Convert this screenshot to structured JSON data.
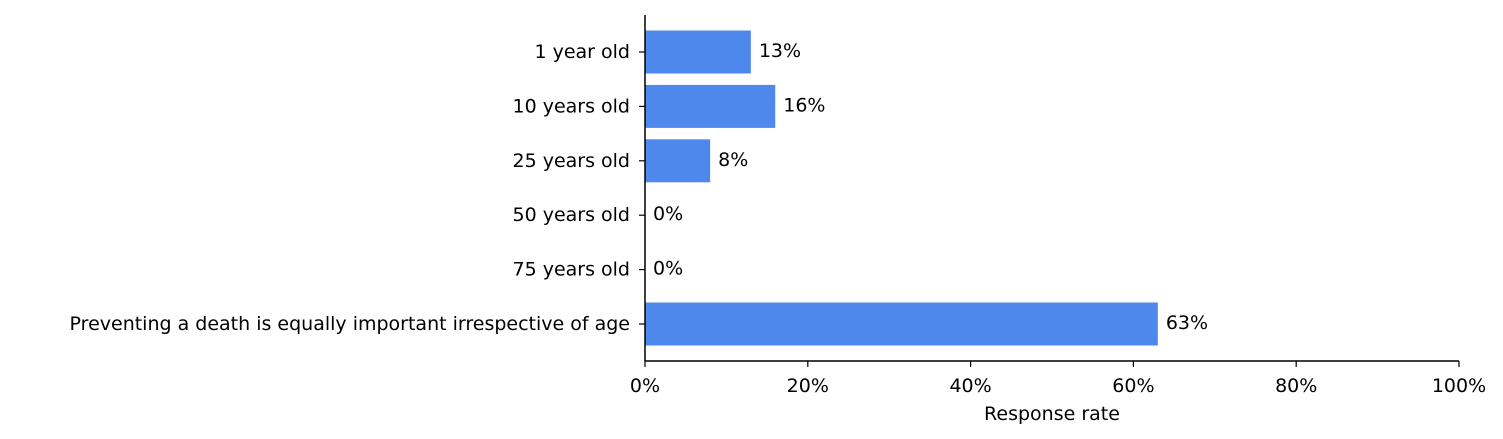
{
  "chart_data": {
    "type": "bar",
    "orientation": "horizontal",
    "categories": [
      "1 year old",
      "10 years old",
      "25 years old",
      "50 years old",
      "75 years old",
      "Preventing a death is equally important irrespective of age"
    ],
    "values": [
      13,
      16,
      8,
      0,
      0,
      63
    ],
    "value_labels": [
      "13%",
      "16%",
      "8%",
      "0%",
      "0%",
      "63%"
    ],
    "xlabel": "Response rate",
    "ylabel": "",
    "xlim": [
      0,
      100
    ],
    "x_ticks": [
      0,
      20,
      40,
      60,
      80,
      100
    ],
    "x_tick_labels": [
      "0%",
      "20%",
      "40%",
      "60%",
      "80%",
      "100%"
    ],
    "grid": false,
    "bar_color": "#4f88ec"
  }
}
